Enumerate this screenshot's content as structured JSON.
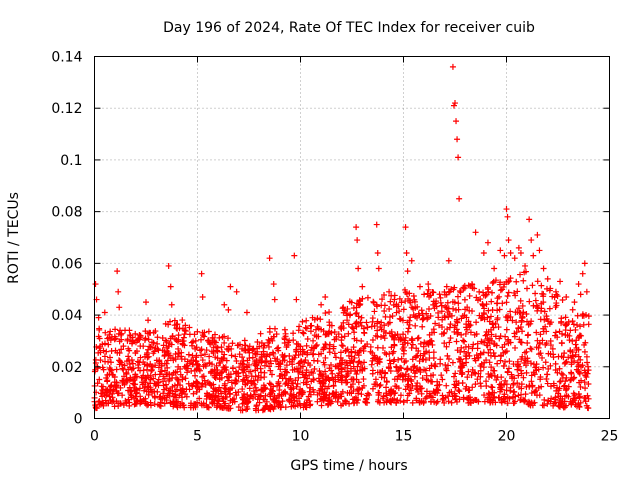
{
  "chart_data": {
    "type": "scatter",
    "title": "Day 196 of 2024, Rate Of TEC Index for receiver cuib",
    "xlabel": "GPS time / hours",
    "ylabel": "ROTI / TECUs",
    "xlim": [
      0,
      25
    ],
    "ylim": [
      0,
      0.14
    ],
    "xticks": [
      0,
      5,
      10,
      15,
      20,
      25
    ],
    "xtick_labels": [
      "0",
      "5",
      "10",
      "15",
      "20",
      "25"
    ],
    "yticks": [
      0,
      0.02,
      0.04,
      0.06,
      0.08,
      0.1,
      0.12,
      0.14
    ],
    "ytick_labels": [
      "0",
      "0.02",
      "0.04",
      "0.06",
      "0.08",
      "0.1",
      "0.12",
      "0.14"
    ],
    "grid": true,
    "marker": "+",
    "color": "#ff0000",
    "series": [
      {
        "name": "ROTI",
        "x": [
          0.05,
          0.1,
          0.2,
          0.5,
          1.1,
          1.15,
          1.2,
          2.5,
          2.6,
          3.6,
          3.7,
          3.75,
          5.2,
          5.25,
          6.3,
          6.5,
          6.6,
          6.9,
          7.4,
          8.5,
          8.7,
          8.75,
          9.7,
          9.8,
          11.0,
          11.2,
          12.7,
          12.75,
          12.8,
          13.0,
          13.7,
          13.75,
          13.8,
          14.3,
          15.1,
          15.15,
          15.2,
          15.4,
          15.8,
          16.0,
          16.2,
          17.1,
          17.2,
          17.4,
          17.45,
          17.5,
          17.55,
          17.6,
          17.65,
          17.7,
          18.5,
          18.9,
          19.1,
          19.4,
          19.7,
          19.9,
          20.0,
          20.05,
          20.1,
          20.2,
          20.4,
          20.6,
          20.7,
          20.9,
          21.1,
          21.2,
          21.3,
          21.5,
          21.6,
          21.8,
          22.0,
          22.4,
          22.6,
          22.9,
          23.3,
          23.5,
          23.6,
          23.7,
          23.8,
          23.9
        ],
        "y": [
          0.052,
          0.046,
          0.039,
          0.041,
          0.057,
          0.049,
          0.043,
          0.045,
          0.038,
          0.059,
          0.051,
          0.044,
          0.056,
          0.047,
          0.044,
          0.042,
          0.051,
          0.049,
          0.041,
          0.062,
          0.052,
          0.046,
          0.063,
          0.046,
          0.044,
          0.047,
          0.074,
          0.069,
          0.058,
          0.051,
          0.075,
          0.064,
          0.058,
          0.049,
          0.074,
          0.064,
          0.057,
          0.061,
          0.051,
          0.048,
          0.052,
          0.051,
          0.061,
          0.136,
          0.121,
          0.122,
          0.115,
          0.108,
          0.101,
          0.085,
          0.072,
          0.064,
          0.068,
          0.058,
          0.065,
          0.063,
          0.081,
          0.078,
          0.069,
          0.064,
          0.062,
          0.066,
          0.064,
          0.059,
          0.077,
          0.069,
          0.063,
          0.071,
          0.065,
          0.058,
          0.054,
          0.049,
          0.053,
          0.047,
          0.045,
          0.052,
          0.048,
          0.056,
          0.06,
          0.049
        ]
      }
    ],
    "bulk_envelope": {
      "x": [
        0,
        1,
        2,
        3,
        4,
        5,
        6,
        7,
        8,
        9,
        10,
        11,
        12,
        13,
        14,
        15,
        16,
        17,
        18,
        19,
        20,
        21,
        22,
        23,
        24
      ],
      "low": [
        0.004,
        0.004,
        0.005,
        0.005,
        0.004,
        0.004,
        0.004,
        0.003,
        0.003,
        0.004,
        0.004,
        0.005,
        0.005,
        0.006,
        0.006,
        0.006,
        0.006,
        0.006,
        0.006,
        0.006,
        0.006,
        0.005,
        0.005,
        0.004,
        0.004
      ],
      "high": [
        0.028,
        0.03,
        0.03,
        0.03,
        0.031,
        0.028,
        0.026,
        0.024,
        0.026,
        0.029,
        0.032,
        0.034,
        0.036,
        0.038,
        0.04,
        0.04,
        0.04,
        0.042,
        0.044,
        0.044,
        0.046,
        0.048,
        0.044,
        0.036,
        0.034
      ],
      "peak": [
        0.036,
        0.036,
        0.034,
        0.034,
        0.04,
        0.034,
        0.034,
        0.03,
        0.034,
        0.036,
        0.038,
        0.04,
        0.044,
        0.048,
        0.048,
        0.05,
        0.05,
        0.05,
        0.052,
        0.052,
        0.056,
        0.058,
        0.052,
        0.044,
        0.04
      ]
    }
  }
}
